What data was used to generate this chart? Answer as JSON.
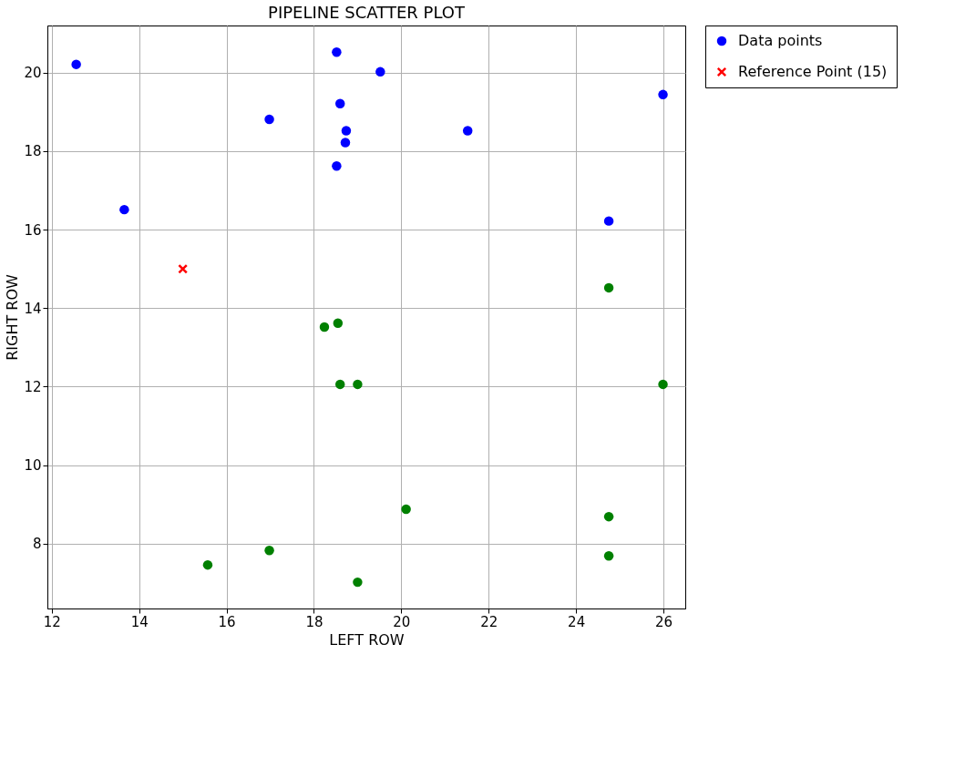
{
  "chart_data": {
    "type": "scatter",
    "title": "PIPELINE SCATTER PLOT",
    "xlabel": "LEFT ROW",
    "ylabel": "RIGHT ROW",
    "xlim": [
      11.9,
      26.5
    ],
    "ylim": [
      6.35,
      21.2
    ],
    "xticks": [
      12,
      14,
      16,
      18,
      20,
      22,
      24,
      26
    ],
    "yticks": [
      8,
      10,
      12,
      14,
      16,
      18,
      20
    ],
    "grid": true,
    "legend": "top right",
    "marker": "circle",
    "series": [
      {
        "name": "Data points",
        "color": "#0000ff",
        "x": [
          12.56,
          13.66,
          16.98,
          18.52,
          18.6,
          18.74,
          18.72,
          18.52,
          19.52,
          21.52,
          24.75,
          25.99,
          15.57,
          16.98,
          18.24,
          18.55,
          18.6,
          19.0,
          19.0,
          20.11,
          24.75,
          24.75,
          24.75,
          25.99
        ],
        "values": [
          20.21,
          16.51,
          18.81,
          20.52,
          19.21,
          18.52,
          18.22,
          17.62,
          20.02,
          18.52,
          16.22,
          19.44,
          7.46,
          7.83,
          13.52,
          13.62,
          12.06,
          12.06,
          7.02,
          8.88,
          14.52,
          8.69,
          7.69,
          12.06
        ],
        "colors": [
          "#0000ff",
          "#0000ff",
          "#0000ff",
          "#0000ff",
          "#0000ff",
          "#0000ff",
          "#0000ff",
          "#0000ff",
          "#0000ff",
          "#0000ff",
          "#0000ff",
          "#0000ff",
          "#008000",
          "#008000",
          "#008000",
          "#008000",
          "#008000",
          "#008000",
          "#008000",
          "#008000",
          "#008000",
          "#008000",
          "#008000",
          "#008000"
        ]
      },
      {
        "name": "Reference Point (15)",
        "color": "#ff0000",
        "marker": "cross",
        "x": [
          15
        ],
        "values": [
          15
        ]
      }
    ]
  }
}
